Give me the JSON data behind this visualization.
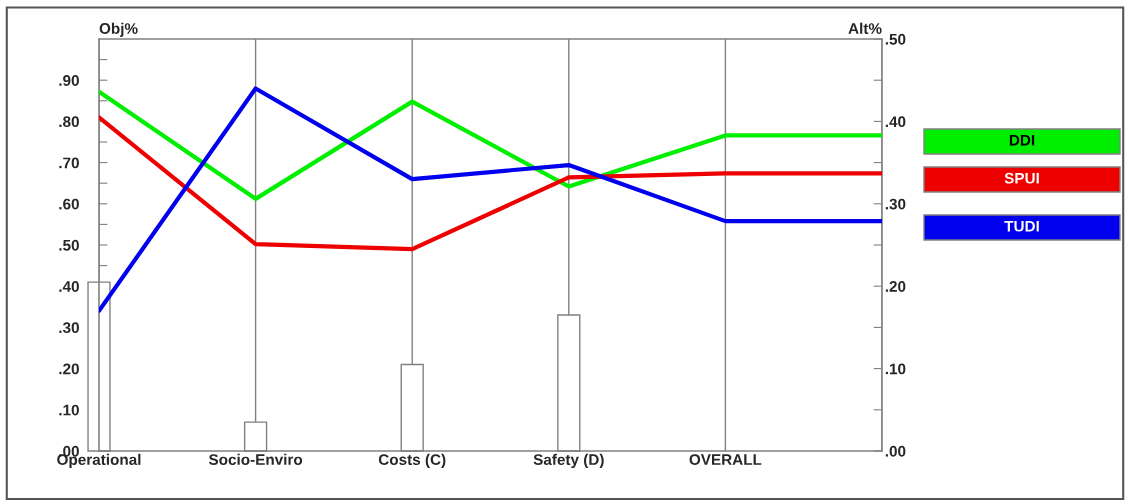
{
  "chart_data": {
    "type": "line",
    "ylabel": "Obj%",
    "y2label": "Alt%",
    "categories": [
      "Operational",
      "Socio-Enviro",
      "Costs (C)",
      "Safety (D)",
      "OVERALL",
      null
    ],
    "series": [
      {
        "type": "bar",
        "axis": "y",
        "color": "#ffffff",
        "values": [
          0.41,
          0.07,
          0.21,
          0.33,
          null,
          null
        ]
      },
      {
        "name": "DDI",
        "axis": "y2",
        "color": "#00ee00",
        "values": [
          0.436,
          0.306,
          0.424,
          0.321,
          0.383,
          0.383
        ]
      },
      {
        "name": "SPUI",
        "axis": "y2",
        "color": "#ee0000",
        "values": [
          0.405,
          0.251,
          0.245,
          0.332,
          0.337,
          0.337
        ]
      },
      {
        "name": "TUDI",
        "axis": "y2",
        "color": "#0000ee",
        "values": [
          0.17,
          0.44,
          0.33,
          0.347,
          0.279,
          0.279
        ]
      }
    ],
    "ylim": [
      0,
      1
    ],
    "yticks": [
      {
        "value": 0,
        "label": ".00"
      },
      {
        "value": 0.05,
        "label": null
      },
      {
        "value": 0.1,
        "label": ".10"
      },
      {
        "value": 0.15,
        "label": null
      },
      {
        "value": 0.2,
        "label": ".20"
      },
      {
        "value": 0.25,
        "label": null
      },
      {
        "value": 0.3,
        "label": ".30"
      },
      {
        "value": 0.35,
        "label": null
      },
      {
        "value": 0.4,
        "label": ".40"
      },
      {
        "value": 0.45,
        "label": null
      },
      {
        "value": 0.5,
        "label": ".50"
      },
      {
        "value": 0.55,
        "label": null
      },
      {
        "value": 0.6,
        "label": ".60"
      },
      {
        "value": 0.65,
        "label": null
      },
      {
        "value": 0.7,
        "label": ".70"
      },
      {
        "value": 0.75,
        "label": null
      },
      {
        "value": 0.8,
        "label": ".80"
      },
      {
        "value": 0.85,
        "label": null
      },
      {
        "value": 0.9,
        "label": ".90"
      },
      {
        "value": 0.95,
        "label": null
      }
    ],
    "y2lim": [
      0,
      0.5
    ],
    "y2ticks": [
      {
        "value": 0,
        "label": ".00"
      },
      {
        "value": 0.05,
        "label": null
      },
      {
        "value": 0.1,
        "label": ".10"
      },
      {
        "value": 0.15,
        "label": null
      },
      {
        "value": 0.2,
        "label": ".20"
      },
      {
        "value": 0.25,
        "label": null
      },
      {
        "value": 0.3,
        "label": ".30"
      },
      {
        "value": 0.35,
        "label": null
      },
      {
        "value": 0.4,
        "label": ".40"
      },
      {
        "value": 0.45,
        "label": null
      },
      {
        "value": 0.5,
        "label": ".50"
      }
    ],
    "grid": "x",
    "legend": "right",
    "marker": "none",
    "line_style": "solid"
  }
}
